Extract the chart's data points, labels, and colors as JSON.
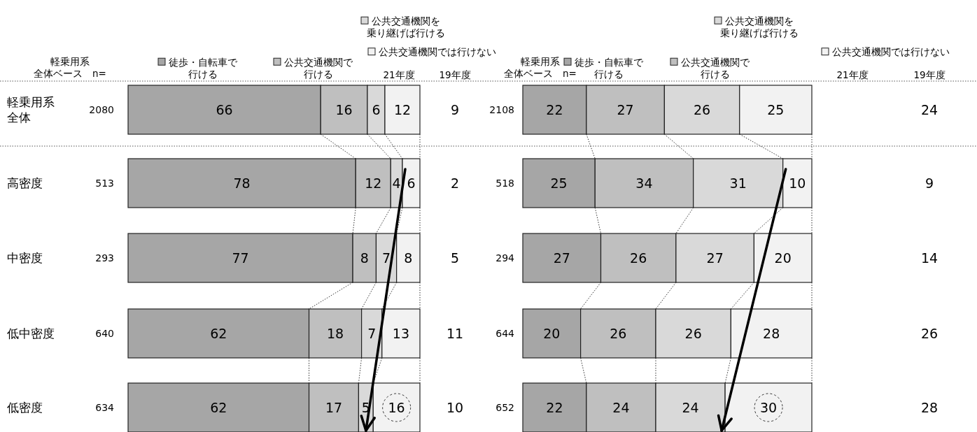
{
  "chart_data": [
    {
      "type": "bar",
      "orientation": "horizontal",
      "stacked": true,
      "data_labels": true,
      "legend": "top",
      "tick_labels": "y",
      "xlim": [
        0,
        100
      ],
      "categories": [
        "軽乗用系全体",
        "高密度",
        "中密度",
        "低中密度",
        "低密度"
      ],
      "series": [
        {
          "name": "徒歩・自転車で行ける",
          "color": "#a6a6a6",
          "values": [
            66,
            78,
            77,
            62,
            62
          ]
        },
        {
          "name": "公共交通機関で行ける",
          "color": "#bfbfbf",
          "values": [
            16,
            12,
            8,
            18,
            17
          ]
        },
        {
          "name": "公共交通機関を乗り継げば行ける",
          "color": "#d9d9d9",
          "values": [
            6,
            4,
            7,
            7,
            5
          ]
        },
        {
          "name": "公共交通機関では行けない",
          "color": "#f2f2f2",
          "values": [
            12,
            6,
            8,
            13,
            16
          ]
        }
      ],
      "annotations": [
        "軽乗用系全体ベース　n=",
        "21年度",
        "19年度",
        "2080",
        "513",
        "293",
        "640",
        "634",
        "9",
        "2",
        "5",
        "11",
        "10"
      ]
    },
    {
      "type": "bar",
      "orientation": "horizontal",
      "stacked": true,
      "data_labels": true,
      "legend": "top",
      "tick_labels": "y",
      "xlim": [
        0,
        100
      ],
      "categories": [
        "2108",
        "518",
        "294",
        "644",
        "652"
      ],
      "series": [
        {
          "name": "徒歩・自転車で行ける",
          "color": "#a6a6a6",
          "values": [
            22,
            25,
            27,
            20,
            22
          ]
        },
        {
          "name": "公共交通機関で行ける",
          "color": "#bfbfbf",
          "values": [
            27,
            34,
            26,
            26,
            24
          ]
        },
        {
          "name": "公共交通機関を乗り継げば行ける",
          "color": "#d9d9d9",
          "values": [
            26,
            31,
            27,
            26,
            24
          ]
        },
        {
          "name": "公共交通機関では行けない",
          "color": "#f2f2f2",
          "values": [
            25,
            10,
            20,
            28,
            30
          ]
        }
      ],
      "annotations": [
        "軽乗用系全体ベース　n=",
        "21年度",
        "19年度",
        "24",
        "9",
        "14",
        "26",
        "28"
      ]
    }
  ]
}
